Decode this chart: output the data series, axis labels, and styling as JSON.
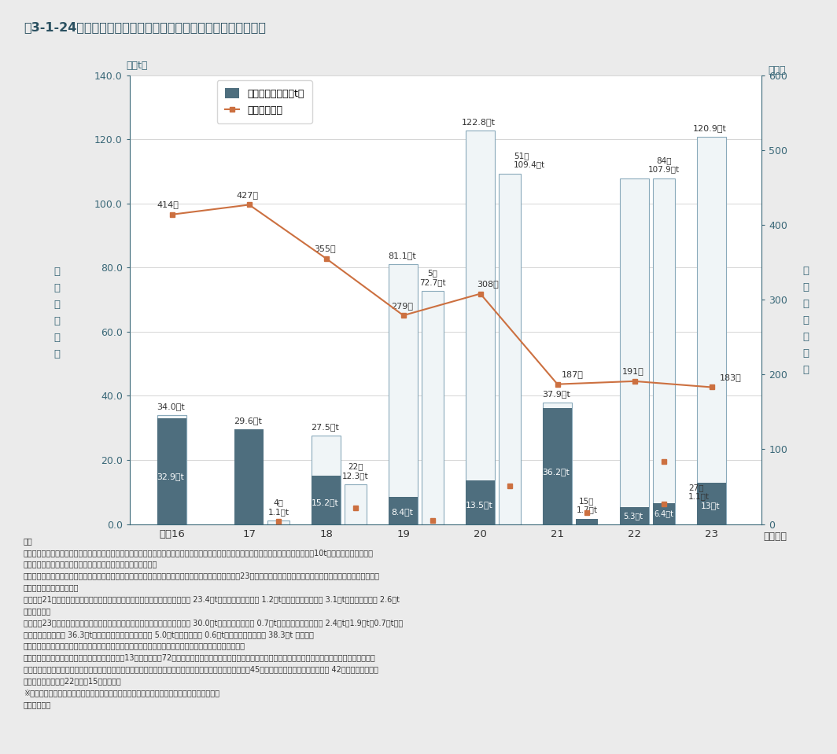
{
  "title": "嘶3-1-24　産業廃棄物の不適正処理件数及び不適正処理量の推移",
  "years": [
    "平成16",
    "17",
    "18",
    "19",
    "20",
    "21",
    "22",
    "23"
  ],
  "year_label": "（年度）",
  "ylabel_left": "不\n適\n正\n処\n理\n量",
  "ylabel_right": "不\n適\n正\n処\n理\n件\n数",
  "unit_left": "（万t）",
  "unit_right": "（件）",
  "bar_dark": [
    32.9,
    29.6,
    15.2,
    8.4,
    13.5,
    36.2,
    5.3,
    13.0
  ],
  "bar_white_main": [
    34.0,
    29.6,
    27.5,
    81.1,
    122.8,
    37.9,
    107.9,
    120.9
  ],
  "bar_white_sub": [
    null,
    1.1,
    12.3,
    72.7,
    109.4,
    null,
    null,
    null
  ],
  "bar_dark_sub": [
    null,
    null,
    null,
    null,
    null,
    1.7,
    6.4,
    null
  ],
  "bar_white_sub2": [
    null,
    null,
    null,
    null,
    null,
    null,
    107.9,
    null
  ],
  "line_main": [
    414,
    427,
    355,
    279,
    308,
    187,
    191,
    183
  ],
  "line_sub": [
    null,
    4,
    22,
    5,
    51,
    15,
    27,
    null
  ],
  "line_sub2": [
    null,
    null,
    null,
    null,
    null,
    null,
    84,
    null
  ],
  "bar_color_dark": "#4e6e7e",
  "bar_color_white_face": "#f0f5f7",
  "bar_color_border": "#8aaabb",
  "line_color": "#cc7040",
  "ylim_left": [
    0,
    140.0
  ],
  "ylim_right": [
    0,
    600
  ],
  "yticks_left": [
    0.0,
    20.0,
    40.0,
    60.0,
    80.0,
    100.0,
    120.0,
    140.0
  ],
  "yticks_right": [
    0,
    100,
    200,
    300,
    400,
    500,
    600
  ],
  "background_color": "#ebebeb",
  "plot_background": "#ffffff",
  "legend_label_bar": "不適正処理量（万t）",
  "legend_label_line": "不適正処件数",
  "text_color_axis": "#3a6878",
  "ann_dark": [
    "32.9万t",
    "29.6万t",
    "15.2万t",
    "8.4万t",
    "13.5万t",
    "36.2万t",
    "5.3万t",
    "13万t"
  ],
  "ann_white": [
    "34.0万t",
    "",
    "27.5万t",
    "81.1万t",
    "122.8万t",
    "37.9万t",
    "107.9万t",
    "120.9万t"
  ],
  "ann_sub": [
    "",
    "1.1万t",
    "12.3万t",
    "72.7万t",
    "109.4万t",
    "1.7万t",
    "6.4万t",
    ""
  ],
  "ann_line_main": [
    "414件",
    "427件",
    "355件",
    "279件",
    "308件",
    "187件",
    "191件",
    "183件"
  ],
  "ann_line_sub": [
    "",
    "4件",
    "22件",
    "5件",
    "51件",
    "15件",
    "27件",
    ""
  ],
  "ann_line_sub2": [
    "",
    "",
    "",
    "",
    "",
    "",
    "84件",
    ""
  ],
  "note_lines": [
    "注）",
    "１：不適正処理件数及び不適正処理量は、都道府県及び政令市が把握した産業廃棄物の不適正処理事案のうち、１件当たりの不適正処理量が10t以上の事案（ただし特",
    "　　別管理産業廃棄物を含む事案はすべて）を集計対象とした。",
    "２：上記棒グラフ白抜き部分は、報告された年度より前から不適正処理が行われていたもの、なお、平成23年度は不適正処理の開始年度が不明なものを含む（以下、「報",
    "　　告漏れ等」という。）",
    "３：平成21年度に報告されたものには、大規模な事案である福島県川俣町事案 23.4万t、茨城県神栖市事案 1.2万t、石川県小松市事案 3.1万t、長野県塩尻市 2.6万t",
    "　　を含む。",
    "４：平成23年度に報告されたものには、大規模な事案である愛知県豊田市事案 30.0万t、三重県津市事案 0.7万t、京都府南丹市３事案 2.4万t、1.9万t、0.7万t、愛",
    "　　媛県松山市事案 36.3万t、茨城県つくばみらい市事案 5.0万t、古河市事案 0.6万t、沖縄県沖縄市事案 38.3万t を含む。",
    "５：硫酸ピッチ事案及びフェロシルト事案については本調査の対象からは除外し、別途とりまとめている。",
    "　　なお、フェロシルトは埋戻用資材として平成13年８月から組72万トンが販売・使用されたが、その後、これらのフェロシルトに製造・販売業者が有害な廃液を混",
    "　　入させていたことがわかり、産業廃棄物の不法投棄事案であったことが判明した。不法投棄は１府３県の45カ所において確認され、そのうち 42カ所で撤去が完了",
    "　　している（平成22年２月15日時点）。",
    "※　量については、四捨五入で計算して表記していることから合計値が合わない場合がある。",
    "資料：環境省"
  ]
}
